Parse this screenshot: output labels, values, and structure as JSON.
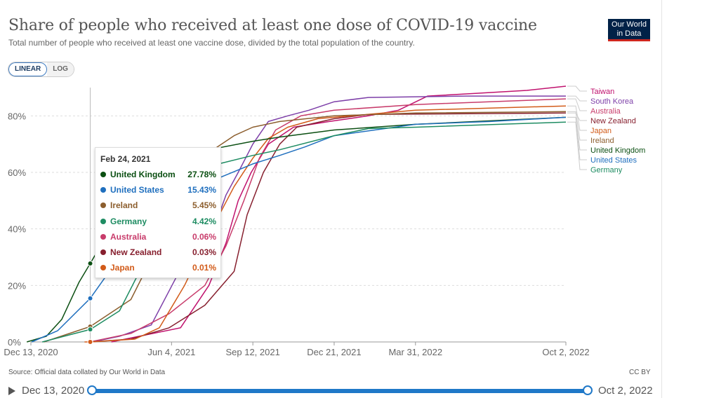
{
  "header": {
    "title": "Share of people who received at least one dose of COVID-19 vaccine",
    "subtitle": "Total number of people who received at least one vaccine dose, divided by the total population of the country.",
    "logo_line1": "Our World",
    "logo_line2": "in Data"
  },
  "scale": {
    "linear_label": "LINEAR",
    "log_label": "LOG",
    "active": "LINEAR"
  },
  "tooltip": {
    "date": "Feb 24, 2021",
    "rows": [
      {
        "name": "United Kingdom",
        "value": "27.78%",
        "color": "#0b4f12"
      },
      {
        "name": "United States",
        "value": "15.43%",
        "color": "#1f6fbe"
      },
      {
        "name": "Ireland",
        "value": "5.45%",
        "color": "#8c5e2e"
      },
      {
        "name": "Germany",
        "value": "4.42%",
        "color": "#1e8c62"
      },
      {
        "name": "Australia",
        "value": "0.06%",
        "color": "#c83c6b"
      },
      {
        "name": "New Zealand",
        "value": "0.03%",
        "color": "#87202f"
      },
      {
        "name": "Japan",
        "value": "0.01%",
        "color": "#d25b19"
      }
    ]
  },
  "footer": {
    "source": "Source: Official data collated by Our World in Data",
    "license": "CC BY"
  },
  "timeline": {
    "start": "Dec 13, 2020",
    "end": "Oct 2, 2022"
  },
  "chart_data": {
    "type": "line",
    "ylim": [
      0,
      90
    ],
    "yticks": [
      0,
      20,
      40,
      60,
      80
    ],
    "ytick_labels": [
      "0%",
      "20%",
      "40%",
      "60%",
      "80%"
    ],
    "xticks": [
      "2020-12-13",
      "2021-06-04",
      "2021-09-12",
      "2021-12-21",
      "2022-03-31",
      "2022-10-02"
    ],
    "xtick_labels": [
      "Dec 13, 2020",
      "Jun 4, 2021",
      "Sep 12, 2021",
      "Dec 21, 2021",
      "Mar 31, 2022",
      "Oct 2, 2022"
    ],
    "xlim": [
      "2020-12-13",
      "2022-10-02"
    ],
    "hover_date": "2021-02-24",
    "grid": true,
    "legend_placement": "right",
    "series": [
      {
        "name": "Taiwan",
        "color": "#c0126e",
        "points": [
          [
            "2021-03-22",
            0
          ],
          [
            "2021-06-15",
            5
          ],
          [
            "2021-07-20",
            20
          ],
          [
            "2021-08-10",
            35
          ],
          [
            "2021-08-25",
            50
          ],
          [
            "2021-09-10",
            60
          ],
          [
            "2021-10-01",
            70
          ],
          [
            "2021-11-01",
            76
          ],
          [
            "2021-12-15",
            78
          ],
          [
            "2022-02-01",
            80
          ],
          [
            "2022-03-10",
            82
          ],
          [
            "2022-04-15",
            87
          ],
          [
            "2022-06-15",
            88
          ],
          [
            "2022-08-15",
            89
          ],
          [
            "2022-10-02",
            90.5
          ]
        ]
      },
      {
        "name": "South Korea",
        "color": "#7d3fa8",
        "points": [
          [
            "2021-02-26",
            0
          ],
          [
            "2021-04-01",
            2
          ],
          [
            "2021-05-10",
            6
          ],
          [
            "2021-06-10",
            23
          ],
          [
            "2021-07-20",
            35
          ],
          [
            "2021-08-10",
            52
          ],
          [
            "2021-08-25",
            60
          ],
          [
            "2021-09-12",
            70
          ],
          [
            "2021-10-01",
            78
          ],
          [
            "2021-10-25",
            80
          ],
          [
            "2021-11-20",
            82
          ],
          [
            "2021-12-21",
            85
          ],
          [
            "2022-02-01",
            86.5
          ],
          [
            "2022-06-01",
            87
          ],
          [
            "2022-10-02",
            87
          ]
        ]
      },
      {
        "name": "Australia",
        "color": "#c83c6b",
        "points": [
          [
            "2021-02-22",
            0
          ],
          [
            "2021-02-24",
            0.06
          ],
          [
            "2021-04-15",
            3
          ],
          [
            "2021-06-01",
            10
          ],
          [
            "2021-07-15",
            20
          ],
          [
            "2021-08-10",
            34
          ],
          [
            "2021-09-01",
            50
          ],
          [
            "2021-09-20",
            65
          ],
          [
            "2021-10-10",
            75
          ],
          [
            "2021-11-10",
            80
          ],
          [
            "2021-12-21",
            82
          ],
          [
            "2022-03-31",
            84
          ],
          [
            "2022-10-02",
            86
          ]
        ]
      },
      {
        "name": "New Zealand",
        "color": "#87202f",
        "points": [
          [
            "2021-02-20",
            0
          ],
          [
            "2021-02-24",
            0.03
          ],
          [
            "2021-04-15",
            1
          ],
          [
            "2021-06-01",
            5
          ],
          [
            "2021-07-15",
            13
          ],
          [
            "2021-08-20",
            25
          ],
          [
            "2021-09-05",
            45
          ],
          [
            "2021-09-25",
            60
          ],
          [
            "2021-10-15",
            70
          ],
          [
            "2021-11-05",
            76
          ],
          [
            "2021-12-21",
            79
          ],
          [
            "2022-02-01",
            80.5
          ],
          [
            "2022-10-02",
            81
          ]
        ]
      },
      {
        "name": "Japan",
        "color": "#d25b19",
        "points": [
          [
            "2021-02-17",
            0
          ],
          [
            "2021-02-24",
            0.01
          ],
          [
            "2021-04-20",
            1
          ],
          [
            "2021-05-20",
            5
          ],
          [
            "2021-06-20",
            20
          ],
          [
            "2021-07-20",
            38
          ],
          [
            "2021-08-20",
            55
          ],
          [
            "2021-09-12",
            65
          ],
          [
            "2021-10-01",
            72
          ],
          [
            "2021-10-25",
            76
          ],
          [
            "2021-12-01",
            79
          ],
          [
            "2022-03-31",
            82
          ],
          [
            "2022-10-02",
            83.5
          ]
        ]
      },
      {
        "name": "Ireland",
        "color": "#8c5e2e",
        "points": [
          [
            "2020-12-29",
            0
          ],
          [
            "2021-02-24",
            5.45
          ],
          [
            "2021-04-15",
            15
          ],
          [
            "2021-05-20",
            35
          ],
          [
            "2021-06-20",
            55
          ],
          [
            "2021-07-20",
            67
          ],
          [
            "2021-08-20",
            73
          ],
          [
            "2021-09-12",
            76
          ],
          [
            "2021-10-15",
            78
          ],
          [
            "2021-12-21",
            80
          ],
          [
            "2022-03-31",
            81
          ],
          [
            "2022-10-02",
            81.5
          ]
        ]
      },
      {
        "name": "United Kingdom",
        "color": "#0b4f12",
        "points": [
          [
            "2020-12-08",
            0
          ],
          [
            "2021-01-01",
            2
          ],
          [
            "2021-01-20",
            8
          ],
          [
            "2021-02-10",
            21
          ],
          [
            "2021-02-24",
            27.78
          ],
          [
            "2021-03-25",
            42
          ],
          [
            "2021-04-20",
            50
          ],
          [
            "2021-05-20",
            57
          ],
          [
            "2021-06-20",
            65
          ],
          [
            "2021-07-20",
            68
          ],
          [
            "2021-09-12",
            71
          ],
          [
            "2021-10-15",
            72.5
          ],
          [
            "2021-12-21",
            75
          ],
          [
            "2022-03-31",
            77
          ],
          [
            "2022-10-02",
            79.5
          ]
        ]
      },
      {
        "name": "United States",
        "color": "#1f6fbe",
        "points": [
          [
            "2020-12-14",
            0
          ],
          [
            "2021-01-15",
            4
          ],
          [
            "2021-02-24",
            15.43
          ],
          [
            "2021-04-01",
            30
          ],
          [
            "2021-05-01",
            44
          ],
          [
            "2021-06-01",
            51
          ],
          [
            "2021-07-01",
            55
          ],
          [
            "2021-08-01",
            58
          ],
          [
            "2021-09-12",
            63
          ],
          [
            "2021-10-15",
            66
          ],
          [
            "2021-11-15",
            69
          ],
          [
            "2021-12-21",
            73
          ],
          [
            "2022-03-31",
            77
          ],
          [
            "2022-07-01",
            78
          ],
          [
            "2022-10-02",
            79.5
          ]
        ]
      },
      {
        "name": "Germany",
        "color": "#1e8c62",
        "points": [
          [
            "2020-12-27",
            0
          ],
          [
            "2021-02-24",
            4.42
          ],
          [
            "2021-04-01",
            11
          ],
          [
            "2021-05-01",
            28
          ],
          [
            "2021-06-01",
            45
          ],
          [
            "2021-07-01",
            58
          ],
          [
            "2021-08-01",
            63
          ],
          [
            "2021-09-12",
            66
          ],
          [
            "2021-10-15",
            68
          ],
          [
            "2021-12-21",
            73
          ],
          [
            "2022-02-01",
            75.5
          ],
          [
            "2022-04-01",
            76
          ],
          [
            "2022-10-02",
            77.8
          ]
        ]
      }
    ]
  }
}
